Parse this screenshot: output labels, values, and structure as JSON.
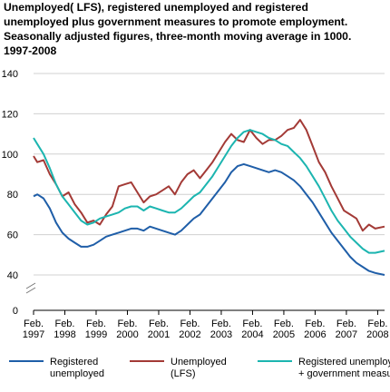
{
  "chart_data": {
    "type": "line",
    "title_lines": [
      "Unemployed( LFS), registered unemployed and registered",
      "unemployed plus government measures to promote employment.",
      "Seasonally adjusted figures, three-month moving average in 1000.",
      "1997-2008"
    ],
    "xlabel": "",
    "ylabel": "",
    "ylim": [
      0,
      140
    ],
    "y_ticks": [
      0,
      40,
      60,
      80,
      100,
      120,
      140
    ],
    "axis_break": true,
    "grid": true,
    "legend_position": "bottom",
    "x_ticks": [
      {
        "x": 1997.08,
        "line1": "Feb.",
        "line2": "1997"
      },
      {
        "x": 1998.08,
        "line1": "Feb.",
        "line2": "1998"
      },
      {
        "x": 1999.08,
        "line1": "Feb.",
        "line2": "1999"
      },
      {
        "x": 2000.08,
        "line1": "Feb.",
        "line2": "2000"
      },
      {
        "x": 2001.08,
        "line1": "Feb.",
        "line2": "2001"
      },
      {
        "x": 2002.08,
        "line1": "Feb.",
        "line2": "2002"
      },
      {
        "x": 2003.08,
        "line1": "Feb.",
        "line2": "2003"
      },
      {
        "x": 2004.08,
        "line1": "Feb.",
        "line2": "2004"
      },
      {
        "x": 2005.08,
        "line1": "Feb.",
        "line2": "2005"
      },
      {
        "x": 2006.08,
        "line1": "Feb.",
        "line2": "2006"
      },
      {
        "x": 2007.08,
        "line1": "Feb.",
        "line2": "2007"
      },
      {
        "x": 2008.08,
        "line1": "Feb.",
        "line2": "2008"
      }
    ],
    "xlim": [
      1997.08,
      2008.3
    ],
    "series": [
      {
        "name_lines": [
          "Registered",
          "unemployed"
        ],
        "color": "#1f5ea8",
        "points": [
          [
            1997.08,
            79
          ],
          [
            1997.2,
            80
          ],
          [
            1997.4,
            78
          ],
          [
            1997.6,
            73
          ],
          [
            1997.8,
            66
          ],
          [
            1998.0,
            61
          ],
          [
            1998.2,
            58
          ],
          [
            1998.4,
            56
          ],
          [
            1998.6,
            54
          ],
          [
            1998.8,
            54
          ],
          [
            1999.0,
            55
          ],
          [
            1999.2,
            57
          ],
          [
            1999.4,
            59
          ],
          [
            1999.6,
            60
          ],
          [
            1999.8,
            61
          ],
          [
            2000.0,
            62
          ],
          [
            2000.2,
            63
          ],
          [
            2000.4,
            63
          ],
          [
            2000.6,
            62
          ],
          [
            2000.8,
            64
          ],
          [
            2001.0,
            63
          ],
          [
            2001.2,
            62
          ],
          [
            2001.4,
            61
          ],
          [
            2001.6,
            60
          ],
          [
            2001.8,
            62
          ],
          [
            2002.0,
            65
          ],
          [
            2002.2,
            68
          ],
          [
            2002.4,
            70
          ],
          [
            2002.6,
            74
          ],
          [
            2002.8,
            78
          ],
          [
            2003.0,
            82
          ],
          [
            2003.2,
            86
          ],
          [
            2003.4,
            91
          ],
          [
            2003.6,
            94
          ],
          [
            2003.8,
            95
          ],
          [
            2004.0,
            94
          ],
          [
            2004.2,
            93
          ],
          [
            2004.4,
            92
          ],
          [
            2004.6,
            91
          ],
          [
            2004.8,
            92
          ],
          [
            2005.0,
            91
          ],
          [
            2005.2,
            89
          ],
          [
            2005.4,
            87
          ],
          [
            2005.6,
            84
          ],
          [
            2005.8,
            80
          ],
          [
            2006.0,
            76
          ],
          [
            2006.2,
            71
          ],
          [
            2006.4,
            66
          ],
          [
            2006.6,
            61
          ],
          [
            2006.8,
            57
          ],
          [
            2007.0,
            53
          ],
          [
            2007.2,
            49
          ],
          [
            2007.4,
            46
          ],
          [
            2007.6,
            44
          ],
          [
            2007.8,
            42
          ],
          [
            2008.0,
            41
          ],
          [
            2008.3,
            40
          ]
        ]
      },
      {
        "name_lines": [
          "Unemployed",
          "(LFS)"
        ],
        "color": "#a33a36",
        "points": [
          [
            1997.08,
            99
          ],
          [
            1997.2,
            96
          ],
          [
            1997.4,
            97
          ],
          [
            1997.6,
            90
          ],
          [
            1997.8,
            85
          ],
          [
            1998.0,
            79
          ],
          [
            1998.2,
            81
          ],
          [
            1998.4,
            75
          ],
          [
            1998.6,
            71
          ],
          [
            1998.8,
            66
          ],
          [
            1999.0,
            67
          ],
          [
            1999.2,
            65
          ],
          [
            1999.4,
            70
          ],
          [
            1999.6,
            74
          ],
          [
            1999.8,
            84
          ],
          [
            2000.0,
            85
          ],
          [
            2000.2,
            86
          ],
          [
            2000.4,
            81
          ],
          [
            2000.6,
            76
          ],
          [
            2000.8,
            79
          ],
          [
            2001.0,
            80
          ],
          [
            2001.2,
            82
          ],
          [
            2001.4,
            84
          ],
          [
            2001.6,
            80
          ],
          [
            2001.8,
            86
          ],
          [
            2002.0,
            90
          ],
          [
            2002.2,
            92
          ],
          [
            2002.4,
            88
          ],
          [
            2002.6,
            92
          ],
          [
            2002.8,
            96
          ],
          [
            2003.0,
            101
          ],
          [
            2003.2,
            106
          ],
          [
            2003.4,
            110
          ],
          [
            2003.6,
            107
          ],
          [
            2003.8,
            106
          ],
          [
            2004.0,
            112
          ],
          [
            2004.2,
            108
          ],
          [
            2004.4,
            105
          ],
          [
            2004.6,
            107
          ],
          [
            2004.8,
            107
          ],
          [
            2005.0,
            109
          ],
          [
            2005.2,
            112
          ],
          [
            2005.4,
            113
          ],
          [
            2005.6,
            117
          ],
          [
            2005.8,
            112
          ],
          [
            2006.0,
            104
          ],
          [
            2006.2,
            96
          ],
          [
            2006.4,
            91
          ],
          [
            2006.6,
            84
          ],
          [
            2006.8,
            78
          ],
          [
            2007.0,
            72
          ],
          [
            2007.2,
            70
          ],
          [
            2007.4,
            68
          ],
          [
            2007.6,
            62
          ],
          [
            2007.8,
            65
          ],
          [
            2008.0,
            63
          ],
          [
            2008.3,
            64
          ]
        ]
      },
      {
        "name_lines": [
          "Registered unemployed",
          "+ government measures"
        ],
        "color": "#1cb5b0",
        "points": [
          [
            1997.08,
            108
          ],
          [
            1997.2,
            105
          ],
          [
            1997.4,
            100
          ],
          [
            1997.6,
            93
          ],
          [
            1997.8,
            85
          ],
          [
            1998.0,
            79
          ],
          [
            1998.2,
            75
          ],
          [
            1998.4,
            71
          ],
          [
            1998.6,
            67
          ],
          [
            1998.8,
            65
          ],
          [
            1999.0,
            66
          ],
          [
            1999.2,
            68
          ],
          [
            1999.4,
            69
          ],
          [
            1999.6,
            70
          ],
          [
            1999.8,
            71
          ],
          [
            2000.0,
            73
          ],
          [
            2000.2,
            74
          ],
          [
            2000.4,
            74
          ],
          [
            2000.6,
            72
          ],
          [
            2000.8,
            74
          ],
          [
            2001.0,
            73
          ],
          [
            2001.2,
            72
          ],
          [
            2001.4,
            71
          ],
          [
            2001.6,
            71
          ],
          [
            2001.8,
            73
          ],
          [
            2002.0,
            76
          ],
          [
            2002.2,
            79
          ],
          [
            2002.4,
            81
          ],
          [
            2002.6,
            85
          ],
          [
            2002.8,
            89
          ],
          [
            2003.0,
            94
          ],
          [
            2003.2,
            99
          ],
          [
            2003.4,
            104
          ],
          [
            2003.6,
            108
          ],
          [
            2003.8,
            111
          ],
          [
            2004.0,
            112
          ],
          [
            2004.2,
            111
          ],
          [
            2004.4,
            110
          ],
          [
            2004.6,
            108
          ],
          [
            2004.8,
            107
          ],
          [
            2005.0,
            105
          ],
          [
            2005.2,
            104
          ],
          [
            2005.4,
            101
          ],
          [
            2005.6,
            98
          ],
          [
            2005.8,
            94
          ],
          [
            2006.0,
            89
          ],
          [
            2006.2,
            84
          ],
          [
            2006.4,
            78
          ],
          [
            2006.6,
            72
          ],
          [
            2006.8,
            67
          ],
          [
            2007.0,
            63
          ],
          [
            2007.2,
            59
          ],
          [
            2007.4,
            56
          ],
          [
            2007.6,
            53
          ],
          [
            2007.8,
            51
          ],
          [
            2008.0,
            51
          ],
          [
            2008.3,
            52
          ]
        ]
      }
    ]
  }
}
